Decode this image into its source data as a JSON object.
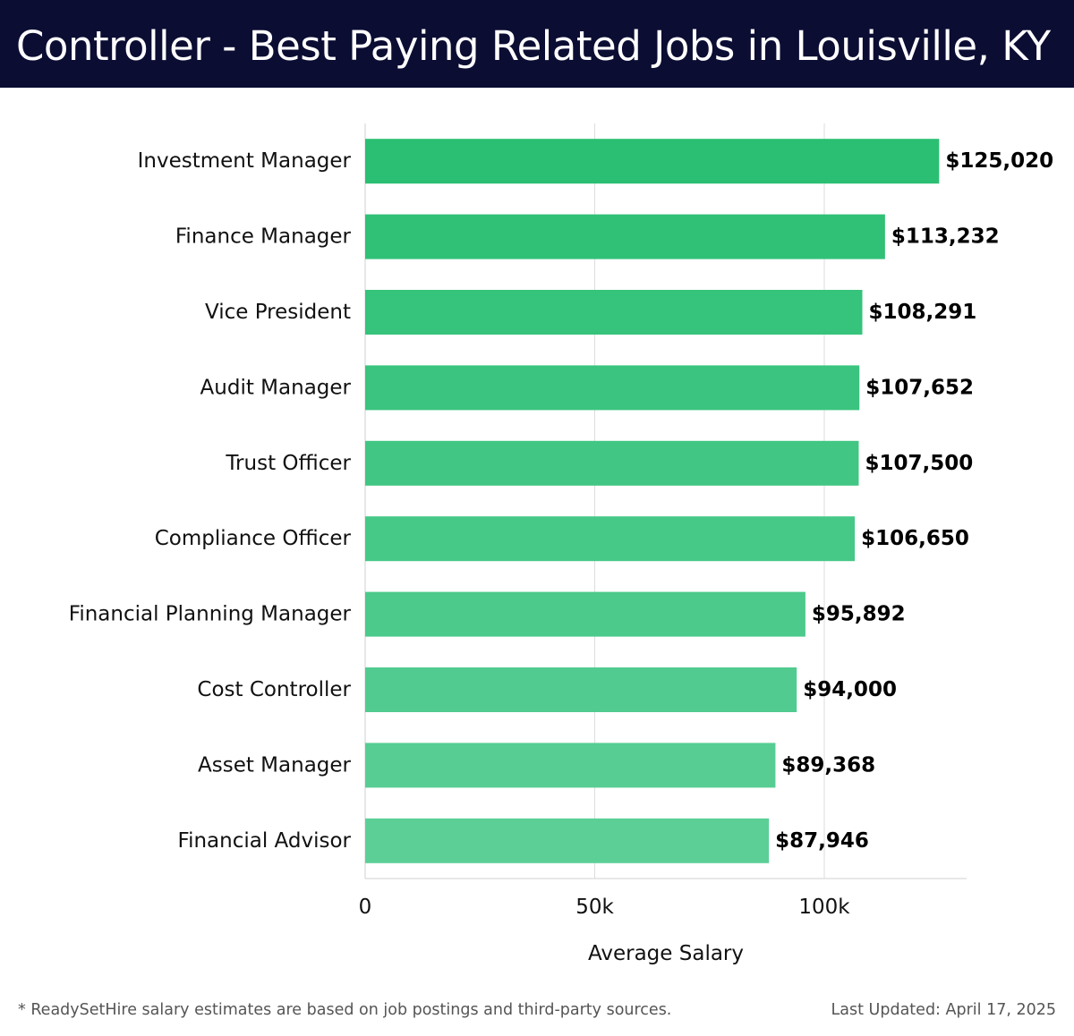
{
  "header": {
    "title": "Controller - Best Paying Related Jobs in Louisville, KY",
    "background_color": "#0b0d33"
  },
  "chart_data": {
    "type": "bar",
    "orientation": "horizontal",
    "categories": [
      "Investment Manager",
      "Finance Manager",
      "Vice President",
      "Audit Manager",
      "Trust Officer",
      "Compliance Officer",
      "Financial Planning Manager",
      "Cost Controller",
      "Asset Manager",
      "Financial Advisor"
    ],
    "values": [
      125020,
      113232,
      108291,
      107652,
      107500,
      106650,
      95892,
      94000,
      89368,
      87946
    ],
    "value_labels": [
      "$125,020",
      "$113,232",
      "$108,291",
      "$107,652",
      "$107,500",
      "$106,650",
      "$95,892",
      "$94,000",
      "$89,368",
      "$87,946"
    ],
    "xlabel": "Average Salary",
    "ylabel": "",
    "xlim": [
      0,
      131000
    ],
    "xticks": [
      0,
      50000,
      100000
    ],
    "xtick_labels": [
      "0",
      "50k",
      "100k"
    ],
    "grid": true,
    "colors": {
      "bar_top": "#2bbf73",
      "bar_bottom": "#5ccf97"
    }
  },
  "footer": {
    "note": "* ReadySetHire salary estimates are based on job postings and third-party sources.",
    "updated": "Last Updated: April 17, 2025"
  }
}
